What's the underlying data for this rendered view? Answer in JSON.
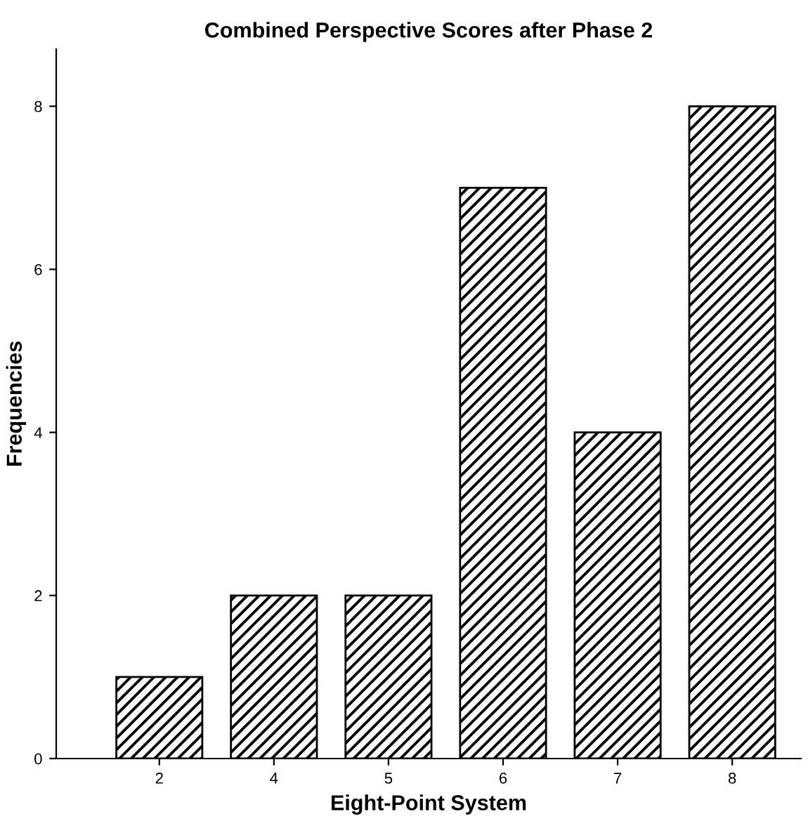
{
  "chart_data": {
    "type": "bar",
    "title": "Combined Perspective Scores after Phase 2",
    "xlabel": "Eight-Point System",
    "ylabel": "Frequencies",
    "categories": [
      "2",
      "4",
      "5",
      "6",
      "7",
      "8"
    ],
    "values": [
      1,
      2,
      2,
      7,
      4,
      8
    ],
    "color": "#000000",
    "ylim": [
      0,
      8.7
    ],
    "yticks": [
      0,
      2,
      4,
      6,
      8
    ],
    "grid": false
  }
}
